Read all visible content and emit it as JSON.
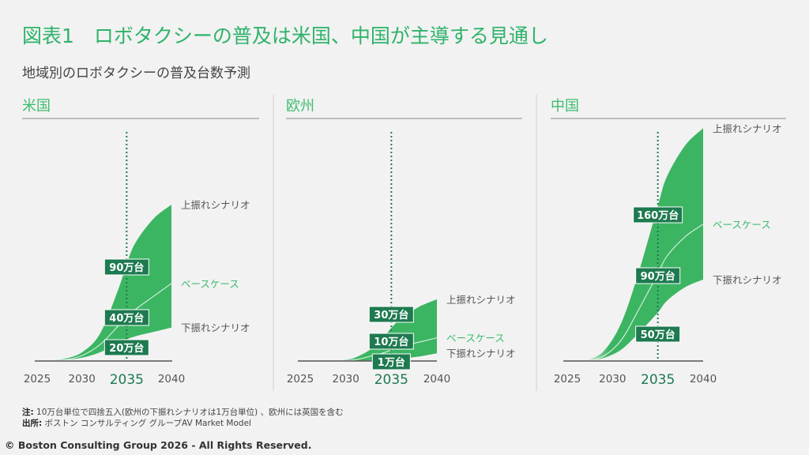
{
  "header": {
    "title": "図表1　ロボタクシーの普及は米国、中国が主導する見通し",
    "subtitle": "地域別のロボタクシーの普及台数予測"
  },
  "colors": {
    "area": "#3cb563",
    "label_bg": "#1e7a50",
    "accent_text": "#3dbd6e",
    "title": "#2fb36a"
  },
  "chart_data": [
    {
      "type": "area",
      "title": "米国",
      "x_ticks": [
        "2025",
        "2030",
        "2035",
        "2040"
      ],
      "highlight_year": "2035",
      "xlim": [
        2025,
        2040
      ],
      "ylim": [
        0,
        225
      ],
      "unit": "万台",
      "series": [
        {
          "name": "上振れシナリオ",
          "x": [
            2026,
            2028,
            2030,
            2032,
            2034,
            2035,
            2036,
            2038,
            2040
          ],
          "y": [
            0,
            2,
            8,
            25,
            65,
            90,
            110,
            132,
            145
          ]
        },
        {
          "name": "ベースケース",
          "x": [
            2026,
            2028,
            2030,
            2032,
            2034,
            2035,
            2036,
            2038,
            2040
          ],
          "y": [
            0,
            1,
            5,
            15,
            32,
            40,
            48,
            60,
            72
          ]
        },
        {
          "name": "下振れシナリオ",
          "x": [
            2026,
            2028,
            2030,
            2032,
            2034,
            2035,
            2036,
            2038,
            2040
          ],
          "y": [
            0,
            1,
            3,
            8,
            16,
            20,
            23,
            27,
            31
          ]
        }
      ],
      "labels_2035": [
        "90万台",
        "40万台",
        "20万台"
      ]
    },
    {
      "type": "area",
      "title": "欧州",
      "x_ticks": [
        "2025",
        "2030",
        "2035",
        "2040"
      ],
      "highlight_year": "2035",
      "xlim": [
        2025,
        2040
      ],
      "ylim": [
        0,
        220
      ],
      "unit": "万台",
      "series": [
        {
          "name": "上振れシナリオ",
          "x": [
            2029,
            2031,
            2033,
            2034,
            2035,
            2036,
            2038,
            2040
          ],
          "y": [
            0,
            3,
            12,
            20,
            30,
            38,
            49,
            56
          ]
        },
        {
          "name": "ベースケース",
          "x": [
            2029,
            2031,
            2033,
            2034,
            2035,
            2036,
            2038,
            2040
          ],
          "y": [
            0,
            1,
            5,
            7,
            10,
            13,
            17,
            21
          ]
        },
        {
          "name": "下振れシナリオ",
          "x": [
            2029,
            2031,
            2033,
            2034,
            2035,
            2036,
            2038,
            2040
          ],
          "y": [
            0,
            0.2,
            0.5,
            0.8,
            1,
            2,
            4,
            7
          ]
        }
      ],
      "labels_2035": [
        "30万台",
        "10万台",
        "1万台"
      ]
    },
    {
      "type": "area",
      "title": "中国",
      "x_ticks": [
        "2025",
        "2030",
        "2035",
        "2040"
      ],
      "highlight_year": "2035",
      "xlim": [
        2025,
        2040
      ],
      "ylim": [
        0,
        250
      ],
      "unit": "万台",
      "series": [
        {
          "name": "上振れシナリオ",
          "x": [
            2027,
            2029,
            2031,
            2033,
            2035,
            2036,
            2038,
            2040
          ],
          "y": [
            0,
            10,
            40,
            95,
            160,
            190,
            222,
            240
          ]
        },
        {
          "name": "ベースケース",
          "x": [
            2027,
            2029,
            2031,
            2033,
            2035,
            2036,
            2038,
            2040
          ],
          "y": [
            0,
            5,
            22,
            55,
            90,
            108,
            128,
            141
          ]
        },
        {
          "name": "下振れシナリオ",
          "x": [
            2027,
            2029,
            2031,
            2033,
            2035,
            2036,
            2038,
            2040
          ],
          "y": [
            0,
            3,
            12,
            30,
            50,
            62,
            76,
            84
          ]
        }
      ],
      "labels_2035": [
        "160万台",
        "90万台",
        "50万台"
      ]
    }
  ],
  "footer": {
    "note_label": "注:",
    "note": " 10万台単位で四捨五入(欧州の下振れシナリオは1万台単位) 、欧州には英国を含む",
    "source_label": "出所:",
    "source": " ボストン コンサルティング グループAV Market Model",
    "copyright": "© Boston Consulting Group 2026 - All Rights Reserved."
  }
}
